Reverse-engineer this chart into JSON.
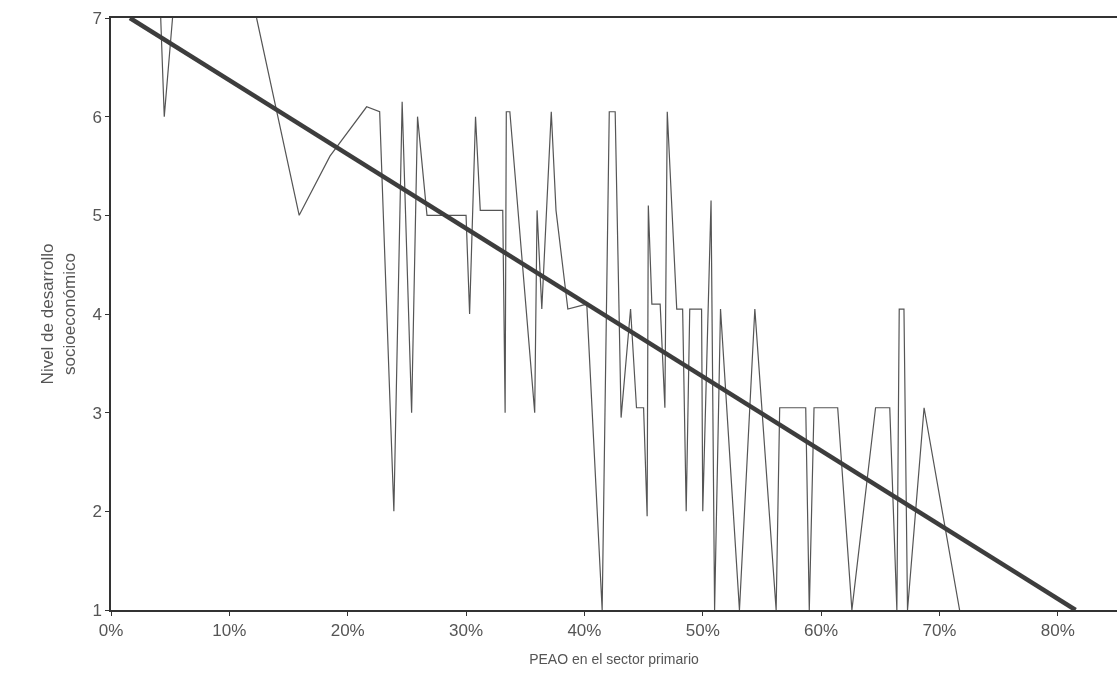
{
  "chart_data": {
    "type": "line",
    "xlabel": "PEAO en el sector primario",
    "ylabel": "Nivel de desarrollo\nsocioeconómico",
    "xlim": [
      0,
      85
    ],
    "ylim": [
      1,
      7
    ],
    "xticks": [
      {
        "value": 0,
        "label": "0%"
      },
      {
        "value": 10,
        "label": "10%"
      },
      {
        "value": 20,
        "label": "20%"
      },
      {
        "value": 30,
        "label": "30%"
      },
      {
        "value": 40,
        "label": "40%"
      },
      {
        "value": 50,
        "label": "50%"
      },
      {
        "value": 60,
        "label": "60%"
      },
      {
        "value": 70,
        "label": "70%"
      },
      {
        "value": 80,
        "label": "80%"
      }
    ],
    "yticks": [
      1,
      2,
      3,
      4,
      5,
      6,
      7
    ],
    "marker": "none",
    "line_style": "solid",
    "series": [
      {
        "color": "#555555",
        "x": [
          4.2,
          4.5,
          5.2,
          8,
          12.3,
          15.9,
          18.5,
          21.6,
          22.7,
          23.9,
          24.6,
          25.4,
          25.9,
          26.7,
          30.0,
          30.3,
          30.8,
          31.2,
          33.1,
          33.3,
          33.4,
          33.7,
          35.8,
          36.0,
          36.4,
          37.2,
          37.6,
          38.6,
          40.2,
          41.5,
          42.1,
          42.6,
          43.1,
          43.9,
          44.4,
          45.0,
          45.3,
          45.4,
          45.7,
          46.4,
          46.8,
          47.0,
          47.8,
          48.3,
          48.6,
          48.9,
          49.9,
          50.0,
          50.7,
          51.0,
          51.5,
          53.1,
          54.4,
          56.2,
          56.5,
          58.7,
          59.0,
          59.4,
          61.4,
          62.6,
          64.6,
          65.8,
          66.4,
          66.6,
          67.0,
          67.3,
          68.7,
          71.7
        ],
        "values": [
          7,
          6,
          7,
          null,
          7,
          5,
          5.6,
          6.1,
          6.05,
          2,
          6.15,
          3,
          6,
          5,
          5,
          4,
          6,
          5.05,
          5.05,
          3,
          6.05,
          6.05,
          3,
          5.05,
          4.05,
          6.05,
          5.05,
          4.05,
          4.1,
          1,
          6.05,
          6.05,
          2.95,
          4.05,
          3.05,
          3.05,
          1.95,
          5.1,
          4.1,
          4.1,
          3.05,
          6.05,
          4.05,
          4.05,
          2,
          4.05,
          4.05,
          2,
          5.15,
          1,
          4.05,
          1,
          4.05,
          1,
          3.05,
          3.05,
          1,
          3.05,
          3.05,
          1,
          3.05,
          3.05,
          1,
          4.05,
          4.05,
          1,
          3.05,
          1
        ]
      },
      {
        "type": "line",
        "color": "#3d3d3d",
        "x": [
          1.6,
          81.5
        ],
        "values": [
          7,
          1
        ]
      }
    ]
  }
}
